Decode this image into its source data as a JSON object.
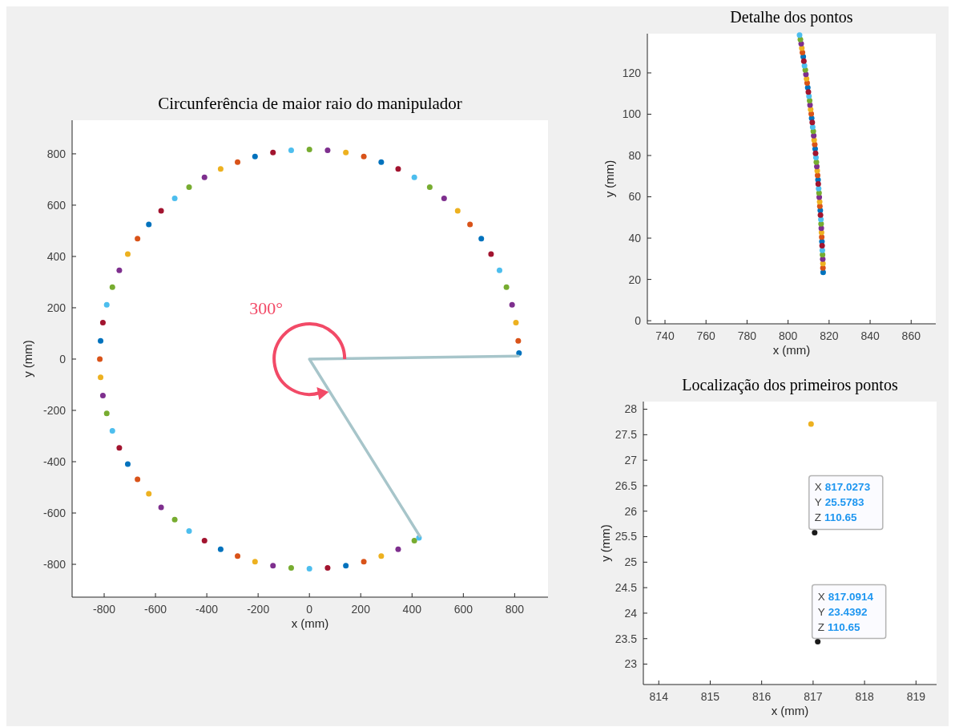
{
  "chart_data": [
    {
      "type": "scatter",
      "title": "Circunferência de maior raio do manipulador",
      "xlabel": "x (mm)",
      "ylabel": "y (mm)",
      "xlim": [
        -925,
        930
      ],
      "ylim": [
        -928,
        931
      ],
      "xticks": [
        -800,
        -600,
        -400,
        -200,
        0,
        200,
        400,
        600,
        800
      ],
      "yticks": [
        -800,
        -600,
        -400,
        -200,
        0,
        200,
        400,
        600,
        800
      ],
      "marker": "circle",
      "annotations": [
        "300°"
      ],
      "series": [
        {
          "color": "#0072bd",
          "x": [
            817,
            670,
            280,
            -212,
            -626,
            -814,
            -708,
            -346,
            142
          ],
          "values": [
            23,
            469,
            768,
            790,
            525,
            71,
            -409,
            -741,
            -805
          ]
        },
        {
          "color": "#d95319",
          "x": [
            814,
            626,
            212,
            -280,
            -670,
            -817,
            -670,
            -280,
            212
          ],
          "values": [
            71,
            525,
            790,
            768,
            469,
            0,
            -469,
            -768,
            -790
          ]
        },
        {
          "color": "#edb120",
          "x": [
            805,
            578,
            142,
            -346,
            -708,
            -814,
            -626,
            -212,
            280
          ],
          "values": [
            142,
            578,
            805,
            741,
            409,
            -71,
            -525,
            -790,
            -768
          ]
        },
        {
          "color": "#7e2f8e",
          "x": [
            790,
            525,
            71,
            -409,
            -741,
            -805,
            -578,
            -142,
            346
          ],
          "values": [
            212,
            626,
            814,
            708,
            346,
            -142,
            -578,
            -805,
            -741
          ]
        },
        {
          "color": "#77ac30",
          "x": [
            768,
            469,
            0,
            -469,
            -768,
            -790,
            -525,
            -71,
            409
          ],
          "values": [
            280,
            670,
            817,
            670,
            280,
            -212,
            -626,
            -814,
            -708
          ]
        },
        {
          "color": "#4dbeee",
          "x": [
            741,
            409,
            -71,
            -525,
            -790,
            -768,
            -469,
            0,
            427
          ],
          "values": [
            346,
            708,
            814,
            626,
            212,
            -280,
            -670,
            -817,
            -697
          ]
        },
        {
          "color": "#a2142f",
          "x": [
            708,
            346,
            -142,
            -578,
            -805,
            -741,
            -409,
            71
          ],
          "values": [
            409,
            741,
            805,
            578,
            142,
            -346,
            -708,
            -814
          ]
        },
        {
          "type": "line",
          "marker": "none",
          "x": [
            815,
            0,
            430
          ],
          "values": [
            12,
            0,
            -690
          ],
          "color": "#a7c5ca"
        }
      ]
    },
    {
      "type": "scatter",
      "title": "Detalhe dos pontos",
      "xlabel": "x (mm)",
      "ylabel": "y (mm)",
      "xlim": [
        731.4,
        872
      ],
      "ylim": [
        -1.5,
        139
      ],
      "xticks": [
        740,
        760,
        780,
        800,
        820,
        840,
        860
      ],
      "yticks": [
        0,
        20,
        40,
        60,
        80,
        100,
        120
      ],
      "marker": "circle",
      "series": [
        {
          "color": "#0072bd",
          "x": [
            817.1,
            816.5,
            815.7,
            814.6,
            813.2,
            811.5,
            809.6,
            807.4
          ],
          "values": [
            23.4,
            38.4,
            53.4,
            68.3,
            83.2,
            98.1,
            112.9,
            127.8
          ]
        },
        {
          "color": "#d95319",
          "x": [
            817.0,
            816.4,
            815.5,
            814.4,
            813.0,
            811.3,
            809.3,
            807.0
          ],
          "values": [
            25.6,
            40.5,
            55.5,
            70.4,
            85.3,
            100.2,
            115.1,
            129.9
          ]
        },
        {
          "color": "#edb120",
          "x": [
            817.0,
            816.3,
            815.4,
            814.2,
            812.7,
            811.0,
            809.0,
            806.7
          ],
          "values": [
            27.7,
            42.7,
            57.6,
            72.6,
            87.5,
            102.3,
            117.2,
            132.0
          ]
        },
        {
          "color": "#7e2f8e",
          "x": [
            816.9,
            816.2,
            815.2,
            814.0,
            812.5,
            810.7,
            808.7,
            806.4
          ],
          "values": [
            29.8,
            44.8,
            59.8,
            74.7,
            89.6,
            104.5,
            119.3,
            134.1
          ]
        },
        {
          "color": "#77ac30",
          "x": [
            816.8,
            816.1,
            815.1,
            813.8,
            812.3,
            810.5,
            808.4,
            806.0
          ],
          "values": [
            32.0,
            46.9,
            61.9,
            76.8,
            91.7,
            106.6,
            121.4,
            136.2
          ]
        },
        {
          "color": "#4dbeee",
          "x": [
            816.7,
            816.0,
            814.9,
            813.6,
            812.0,
            810.2,
            808.0,
            805.6
          ],
          "values": [
            34.1,
            49.1,
            64.0,
            79.0,
            93.8,
            108.7,
            123.5,
            138.3
          ]
        },
        {
          "color": "#a2142f",
          "x": [
            816.6,
            815.8,
            814.7,
            813.4,
            811.8,
            809.9,
            807.7
          ],
          "values": [
            36.3,
            51.2,
            66.2,
            81.1,
            96.0,
            110.8,
            125.7
          ]
        }
      ]
    },
    {
      "type": "scatter",
      "title": "Localização dos primeiros pontos",
      "xlabel": "x (mm)",
      "ylabel": "y (mm)",
      "xlim": [
        813.7,
        819.4
      ],
      "ylim": [
        22.6,
        28.15
      ],
      "xticks": [
        814,
        815,
        816,
        817,
        818,
        819
      ],
      "yticks": [
        23,
        23.5,
        24,
        24.5,
        25,
        25.5,
        26,
        26.5,
        27,
        27.5,
        28
      ],
      "marker": "circle",
      "annotations": [
        {
          "text": "X 817.0273\nY 25.5783\nZ 110.65",
          "x": 817.03,
          "y": 25.58
        },
        {
          "text": "X 817.0914\nY 23.4392\nZ 110.65",
          "x": 817.09,
          "y": 23.44
        }
      ],
      "series": [
        {
          "color": "#1a1a1a",
          "x": [
            817.09,
            817.03
          ],
          "values": [
            23.44,
            25.58
          ]
        },
        {
          "color": "#edb120",
          "x": [
            816.96
          ],
          "values": [
            27.71
          ]
        }
      ]
    }
  ]
}
